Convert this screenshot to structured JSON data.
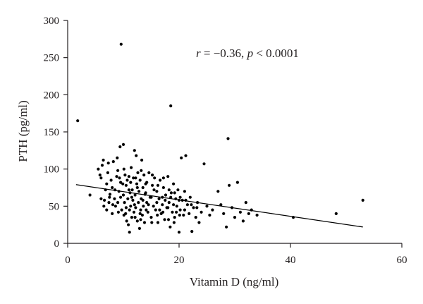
{
  "chart_data": {
    "type": "scatter",
    "xlabel": "Vitamin D (ng/ml)",
    "ylabel": "PTH (pg/ml)",
    "xlim": [
      0,
      60
    ],
    "ylim": [
      0,
      300
    ],
    "xticks": [
      0,
      20,
      40,
      60
    ],
    "yticks": [
      0,
      50,
      100,
      150,
      200,
      250,
      300
    ],
    "annotation": {
      "r_symbol": "r",
      "r_value": " = −0.36, ",
      "p_symbol": "p",
      "p_value": " < 0.0001"
    },
    "grid": false,
    "legend": "none",
    "point_color": "#000000",
    "regression_line": {
      "x": [
        1.5,
        53
      ],
      "y": [
        79,
        22
      ]
    },
    "points": [
      [
        1.8,
        165
      ],
      [
        9.6,
        268
      ],
      [
        18.5,
        185
      ],
      [
        28.8,
        141
      ],
      [
        4,
        65
      ],
      [
        5.5,
        100
      ],
      [
        5.8,
        92
      ],
      [
        6,
        88
      ],
      [
        6.2,
        105
      ],
      [
        6.4,
        112
      ],
      [
        6.6,
        58
      ],
      [
        6.8,
        72
      ],
      [
        7,
        80
      ],
      [
        7.2,
        95
      ],
      [
        7.4,
        55
      ],
      [
        7.6,
        66
      ],
      [
        7.8,
        85
      ],
      [
        8,
        75
      ],
      [
        8.2,
        110
      ],
      [
        8.4,
        60
      ],
      [
        8.6,
        50
      ],
      [
        8.8,
        90
      ],
      [
        9,
        98
      ],
      [
        9.2,
        70
      ],
      [
        9.4,
        130
      ],
      [
        9.5,
        62
      ],
      [
        9.7,
        45
      ],
      [
        9.9,
        80
      ],
      [
        10,
        133
      ],
      [
        10.1,
        100
      ],
      [
        10.2,
        55
      ],
      [
        10.4,
        40
      ],
      [
        10.5,
        78
      ],
      [
        10.6,
        30
      ],
      [
        10.7,
        85
      ],
      [
        10.8,
        60
      ],
      [
        10.9,
        25
      ],
      [
        11,
        90
      ],
      [
        11.1,
        15
      ],
      [
        11.2,
        68
      ],
      [
        11.3,
        50
      ],
      [
        11.4,
        102
      ],
      [
        11.5,
        35
      ],
      [
        11.6,
        72
      ],
      [
        11.7,
        58
      ],
      [
        11.8,
        88
      ],
      [
        11.9,
        42
      ],
      [
        12,
        125
      ],
      [
        12.1,
        65
      ],
      [
        12.2,
        48
      ],
      [
        12.3,
        118
      ],
      [
        12.4,
        80
      ],
      [
        12.5,
        30
      ],
      [
        12.6,
        95
      ],
      [
        12.7,
        55
      ],
      [
        12.8,
        70
      ],
      [
        12.9,
        20
      ],
      [
        13,
        85
      ],
      [
        13.1,
        45
      ],
      [
        13.2,
        60
      ],
      [
        13.3,
        112
      ],
      [
        13.4,
        38
      ],
      [
        13.5,
        75
      ],
      [
        13.6,
        50
      ],
      [
        13.7,
        92
      ],
      [
        13.8,
        28
      ],
      [
        13.9,
        66
      ],
      [
        14,
        80
      ],
      [
        14.2,
        55
      ],
      [
        14.4,
        42
      ],
      [
        14.6,
        95
      ],
      [
        14.8,
        62
      ],
      [
        15,
        35
      ],
      [
        15.2,
        78
      ],
      [
        15.4,
        50
      ],
      [
        15.6,
        88
      ],
      [
        15.8,
        45
      ],
      [
        16,
        70
      ],
      [
        16.2,
        28
      ],
      [
        16.4,
        60
      ],
      [
        16.6,
        85
      ],
      [
        16.8,
        40
      ],
      [
        17,
        52
      ],
      [
        17.2,
        75
      ],
      [
        17.4,
        32
      ],
      [
        17.6,
        65
      ],
      [
        17.8,
        48
      ],
      [
        18,
        90
      ],
      [
        18.2,
        55
      ],
      [
        18.4,
        22
      ],
      [
        18.6,
        68
      ],
      [
        18.8,
        42
      ],
      [
        19,
        80
      ],
      [
        19.2,
        35
      ],
      [
        19.4,
        60
      ],
      [
        19.6,
        50
      ],
      [
        19.8,
        72
      ],
      [
        20,
        15
      ],
      [
        20.2,
        45
      ],
      [
        20.4,
        115
      ],
      [
        20.6,
        58
      ],
      [
        20.8,
        38
      ],
      [
        21,
        70
      ],
      [
        21.2,
        118
      ],
      [
        21.5,
        52
      ],
      [
        21.8,
        40
      ],
      [
        22,
        62
      ],
      [
        22.3,
        16
      ],
      [
        22.6,
        48
      ],
      [
        23,
        35
      ],
      [
        23.3,
        55
      ],
      [
        23.6,
        28
      ],
      [
        24,
        42
      ],
      [
        24.5,
        107
      ],
      [
        25,
        50
      ],
      [
        25.5,
        38
      ],
      [
        26,
        45
      ],
      [
        27,
        70
      ],
      [
        27.5,
        52
      ],
      [
        28,
        40
      ],
      [
        28.5,
        22
      ],
      [
        29,
        78
      ],
      [
        29.5,
        48
      ],
      [
        30,
        35
      ],
      [
        30.5,
        82
      ],
      [
        31,
        42
      ],
      [
        31.5,
        30
      ],
      [
        32,
        55
      ],
      [
        32.5,
        40
      ],
      [
        33,
        45
      ],
      [
        34,
        38
      ],
      [
        40.5,
        35
      ],
      [
        48.2,
        40
      ],
      [
        53,
        58
      ],
      [
        6,
        60
      ],
      [
        6.5,
        50
      ],
      [
        7,
        45
      ],
      [
        7.5,
        62
      ],
      [
        8,
        40
      ],
      [
        8.5,
        72
      ],
      [
        9,
        55
      ],
      [
        9.5,
        82
      ],
      [
        10,
        65
      ],
      [
        10.5,
        48
      ],
      [
        11,
        72
      ],
      [
        11.5,
        62
      ],
      [
        12,
        52
      ],
      [
        12.5,
        75
      ],
      [
        13,
        40
      ],
      [
        13.5,
        58
      ],
      [
        14,
        68
      ],
      [
        14.5,
        52
      ],
      [
        15,
        62
      ],
      [
        15.5,
        72
      ],
      [
        16,
        55
      ],
      [
        16.5,
        45
      ],
      [
        17,
        62
      ],
      [
        17.5,
        58
      ],
      [
        18,
        48
      ],
      [
        18.5,
        62
      ],
      [
        19,
        52
      ],
      [
        19.5,
        42
      ],
      [
        20,
        58
      ],
      [
        21,
        45
      ],
      [
        7.3,
        108
      ],
      [
        8.9,
        115
      ],
      [
        9.3,
        88
      ],
      [
        10.3,
        92
      ],
      [
        11.3,
        82
      ],
      [
        12.2,
        88
      ],
      [
        13.2,
        98
      ],
      [
        14.2,
        82
      ],
      [
        15.2,
        92
      ],
      [
        16.2,
        78
      ],
      [
        17.2,
        88
      ],
      [
        18.2,
        72
      ],
      [
        19.2,
        68
      ],
      [
        20.2,
        62
      ],
      [
        21.2,
        58
      ],
      [
        22.2,
        52
      ],
      [
        23.2,
        48
      ],
      [
        8.1,
        52
      ],
      [
        9.1,
        42
      ],
      [
        10.1,
        38
      ],
      [
        11.1,
        45
      ],
      [
        12.1,
        35
      ],
      [
        13.1,
        32
      ],
      [
        14.1,
        45
      ],
      [
        15.1,
        28
      ],
      [
        16.1,
        38
      ],
      [
        17.1,
        42
      ],
      [
        18.1,
        32
      ],
      [
        19.1,
        28
      ],
      [
        20.1,
        38
      ]
    ]
  }
}
